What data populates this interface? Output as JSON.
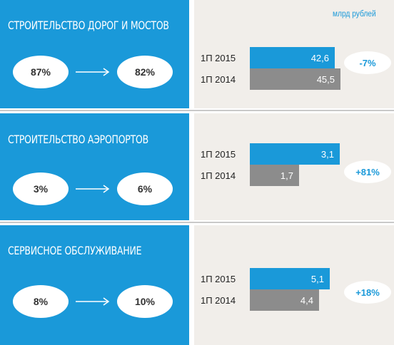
{
  "unit_label": "млрд рублей",
  "chart_data": [
    {
      "type": "bar",
      "title": "СТРОИТЕЛЬСТВО ДОРОГ И МОСТОВ",
      "share_from": "87%",
      "share_to": "82%",
      "categories": [
        "1П 2015",
        "1П 2014"
      ],
      "values": [
        42.6,
        45.5
      ],
      "value_labels": [
        "42,6",
        "45,5"
      ],
      "change": "-7%",
      "colors": [
        "#1a99d9",
        "#8c8c8c"
      ]
    },
    {
      "type": "bar",
      "title": "СТРОИТЕЛЬСТВО АЭРОПОРТОВ",
      "share_from": "3%",
      "share_to": "6%",
      "categories": [
        "1П 2015",
        "1П 2014"
      ],
      "values": [
        3.1,
        1.7
      ],
      "value_labels": [
        "3,1",
        "1,7"
      ],
      "change": "+81%",
      "colors": [
        "#1a99d9",
        "#8c8c8c"
      ]
    },
    {
      "type": "bar",
      "title": "СЕРВИСНОЕ ОБСЛУЖИВАНИЕ",
      "share_from": "8%",
      "share_to": "10%",
      "categories": [
        "1П 2015",
        "1П 2014"
      ],
      "values": [
        5.1,
        4.4
      ],
      "value_labels": [
        "5,1",
        "4,4"
      ],
      "change": "+18%",
      "colors": [
        "#1a99d9",
        "#8c8c8c"
      ]
    }
  ]
}
